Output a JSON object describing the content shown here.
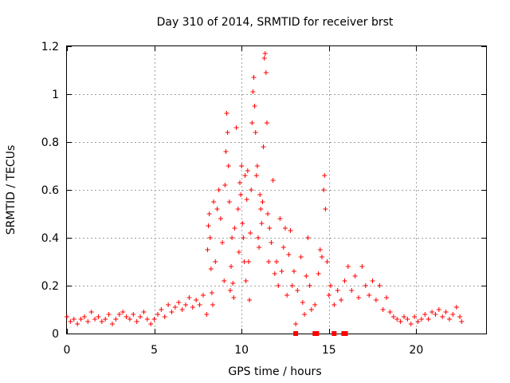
{
  "chart_data": {
    "type": "scatter",
    "title": "Day 310 of 2014, SRMTID for receiver brst",
    "xlabel": "GPS time / hours",
    "ylabel": "SRMTID / TECUs",
    "xlim": [
      0,
      24
    ],
    "ylim": [
      0,
      1.2
    ],
    "xticks": [
      0,
      5,
      10,
      15,
      20
    ],
    "xtick_labels": [
      "0",
      "5",
      "10",
      "15",
      "20"
    ],
    "yticks": [
      0,
      0.2,
      0.4,
      0.6,
      0.8,
      1.0,
      1.2
    ],
    "ytick_labels": [
      "0",
      "0.2",
      "0.4",
      "0.6",
      "0.8",
      "1",
      "1.2"
    ],
    "grid": true,
    "marker": "+",
    "marker_color": "#ff0000",
    "series": [
      {
        "name": "SRMTID",
        "points": [
          [
            0.0,
            0.07
          ],
          [
            0.2,
            0.05
          ],
          [
            0.4,
            0.06
          ],
          [
            0.6,
            0.04
          ],
          [
            0.8,
            0.06
          ],
          [
            1.0,
            0.07
          ],
          [
            1.2,
            0.05
          ],
          [
            1.4,
            0.09
          ],
          [
            1.6,
            0.06
          ],
          [
            1.8,
            0.07
          ],
          [
            2.0,
            0.05
          ],
          [
            2.2,
            0.06
          ],
          [
            2.4,
            0.08
          ],
          [
            2.6,
            0.04
          ],
          [
            2.8,
            0.06
          ],
          [
            3.0,
            0.08
          ],
          [
            3.2,
            0.09
          ],
          [
            3.4,
            0.07
          ],
          [
            3.6,
            0.06
          ],
          [
            3.8,
            0.08
          ],
          [
            4.0,
            0.05
          ],
          [
            4.2,
            0.07
          ],
          [
            4.4,
            0.09
          ],
          [
            4.6,
            0.06
          ],
          [
            4.8,
            0.04
          ],
          [
            5.0,
            0.06
          ],
          [
            5.2,
            0.08
          ],
          [
            5.4,
            0.1
          ],
          [
            5.6,
            0.07
          ],
          [
            5.8,
            0.12
          ],
          [
            6.0,
            0.09
          ],
          [
            6.2,
            0.11
          ],
          [
            6.4,
            0.13
          ],
          [
            6.6,
            0.1
          ],
          [
            6.8,
            0.12
          ],
          [
            7.0,
            0.15
          ],
          [
            7.2,
            0.11
          ],
          [
            7.4,
            0.14
          ],
          [
            7.6,
            0.12
          ],
          [
            7.8,
            0.16
          ],
          [
            8.0,
            0.08
          ],
          [
            8.05,
            0.35
          ],
          [
            8.1,
            0.45
          ],
          [
            8.15,
            0.5
          ],
          [
            8.2,
            0.4
          ],
          [
            8.25,
            0.27
          ],
          [
            8.3,
            0.17
          ],
          [
            8.35,
            0.12
          ],
          [
            8.4,
            0.55
          ],
          [
            8.5,
            0.3
          ],
          [
            8.6,
            0.52
          ],
          [
            8.7,
            0.6
          ],
          [
            8.8,
            0.48
          ],
          [
            8.9,
            0.38
          ],
          [
            9.0,
            0.22
          ],
          [
            9.05,
            0.62
          ],
          [
            9.1,
            0.76
          ],
          [
            9.15,
            0.92
          ],
          [
            9.2,
            0.84
          ],
          [
            9.25,
            0.7
          ],
          [
            9.3,
            0.55
          ],
          [
            9.35,
            0.18
          ],
          [
            9.4,
            0.28
          ],
          [
            9.45,
            0.4
          ],
          [
            9.5,
            0.21
          ],
          [
            9.55,
            0.15
          ],
          [
            9.6,
            0.44
          ],
          [
            9.7,
            0.86
          ],
          [
            9.8,
            0.52
          ],
          [
            9.85,
            0.34
          ],
          [
            9.9,
            0.63
          ],
          [
            9.95,
            0.58
          ],
          [
            10.0,
            0.7
          ],
          [
            10.05,
            0.46
          ],
          [
            10.1,
            0.4
          ],
          [
            10.15,
            0.3
          ],
          [
            10.2,
            0.66
          ],
          [
            10.25,
            0.22
          ],
          [
            10.3,
            0.56
          ],
          [
            10.35,
            0.68
          ],
          [
            10.4,
            0.3
          ],
          [
            10.45,
            0.14
          ],
          [
            10.5,
            0.42
          ],
          [
            10.55,
            0.6
          ],
          [
            10.6,
            0.88
          ],
          [
            10.65,
            1.01
          ],
          [
            10.7,
            1.07
          ],
          [
            10.75,
            0.95
          ],
          [
            10.8,
            0.84
          ],
          [
            10.85,
            0.66
          ],
          [
            10.9,
            0.7
          ],
          [
            10.95,
            0.4
          ],
          [
            11.0,
            0.36
          ],
          [
            11.05,
            0.58
          ],
          [
            11.1,
            0.52
          ],
          [
            11.15,
            0.46
          ],
          [
            11.2,
            0.55
          ],
          [
            11.25,
            0.78
          ],
          [
            11.3,
            1.15
          ],
          [
            11.35,
            1.17
          ],
          [
            11.4,
            1.09
          ],
          [
            11.45,
            0.88
          ],
          [
            11.5,
            0.5
          ],
          [
            11.55,
            0.3
          ],
          [
            11.6,
            0.44
          ],
          [
            11.7,
            0.38
          ],
          [
            11.8,
            0.64
          ],
          [
            11.9,
            0.25
          ],
          [
            12.0,
            0.3
          ],
          [
            12.1,
            0.2
          ],
          [
            12.2,
            0.48
          ],
          [
            12.3,
            0.26
          ],
          [
            12.4,
            0.36
          ],
          [
            12.5,
            0.44
          ],
          [
            12.6,
            0.16
          ],
          [
            12.7,
            0.33
          ],
          [
            12.8,
            0.43
          ],
          [
            12.9,
            0.2
          ],
          [
            13.0,
            0.26
          ],
          [
            13.1,
            0.04
          ],
          [
            13.2,
            0.18
          ],
          [
            13.4,
            0.32
          ],
          [
            13.5,
            0.13
          ],
          [
            13.6,
            0.08
          ],
          [
            13.7,
            0.24
          ],
          [
            13.8,
            0.4
          ],
          [
            13.9,
            0.2
          ],
          [
            14.0,
            0.1
          ],
          [
            14.2,
            0.12
          ],
          [
            14.4,
            0.25
          ],
          [
            14.5,
            0.35
          ],
          [
            14.6,
            0.32
          ],
          [
            14.7,
            0.6
          ],
          [
            14.75,
            0.66
          ],
          [
            14.8,
            0.52
          ],
          [
            14.9,
            0.3
          ],
          [
            15.0,
            0.16
          ],
          [
            15.1,
            0.2
          ],
          [
            15.3,
            0.12
          ],
          [
            15.5,
            0.18
          ],
          [
            15.7,
            0.14
          ],
          [
            15.9,
            0.22
          ],
          [
            16.1,
            0.28
          ],
          [
            16.3,
            0.18
          ],
          [
            16.5,
            0.24
          ],
          [
            16.7,
            0.15
          ],
          [
            16.9,
            0.28
          ],
          [
            17.1,
            0.2
          ],
          [
            17.3,
            0.16
          ],
          [
            17.5,
            0.22
          ],
          [
            17.7,
            0.14
          ],
          [
            17.9,
            0.2
          ],
          [
            18.1,
            0.1
          ],
          [
            18.3,
            0.15
          ],
          [
            18.5,
            0.09
          ],
          [
            18.7,
            0.07
          ],
          [
            18.9,
            0.06
          ],
          [
            19.1,
            0.05
          ],
          [
            19.3,
            0.07
          ],
          [
            19.5,
            0.06
          ],
          [
            19.7,
            0.04
          ],
          [
            19.9,
            0.07
          ],
          [
            20.1,
            0.05
          ],
          [
            20.3,
            0.06
          ],
          [
            20.5,
            0.08
          ],
          [
            20.7,
            0.06
          ],
          [
            20.9,
            0.09
          ],
          [
            21.1,
            0.08
          ],
          [
            21.3,
            0.1
          ],
          [
            21.5,
            0.07
          ],
          [
            21.7,
            0.09
          ],
          [
            21.9,
            0.06
          ],
          [
            22.1,
            0.08
          ],
          [
            22.3,
            0.11
          ],
          [
            22.5,
            0.07
          ],
          [
            22.6,
            0.05
          ]
        ]
      }
    ],
    "baseline_markers": [
      13.1,
      14.2,
      14.3,
      15.3,
      15.85,
      15.95
    ]
  }
}
